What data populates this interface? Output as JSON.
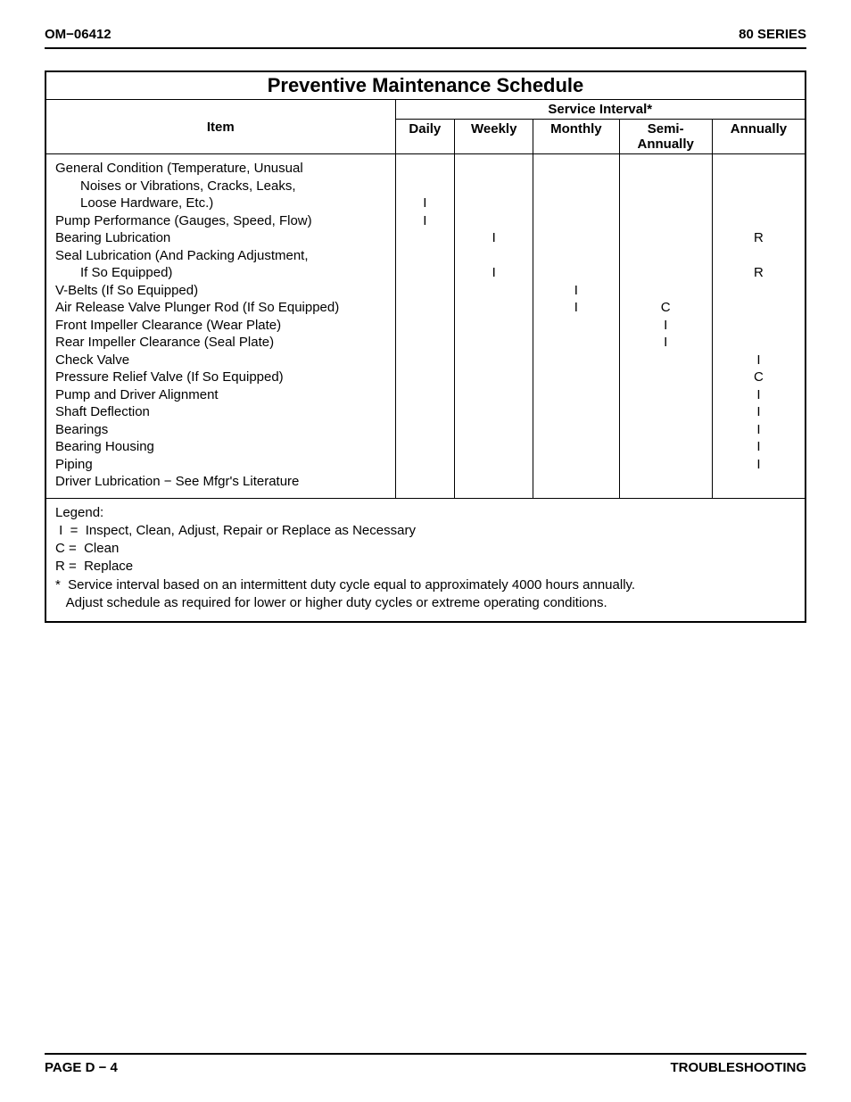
{
  "header": {
    "left": "OM−06412",
    "right": "80 SERIES"
  },
  "footer": {
    "left": "PAGE D − 4",
    "right": "TROUBLESHOOTING"
  },
  "table": {
    "title": "Preventive Maintenance Schedule",
    "item_header": "Item",
    "service_interval_header": "Service Interval*",
    "columns": [
      "Daily",
      "Weekly",
      "Monthly",
      "Semi-\nAnnually",
      "Annually"
    ],
    "rows": [
      {
        "item_lines": [
          "General Condition (Temperature, Unusual",
          "  Noises or Vibrations, Cracks, Leaks,",
          "  Loose Hardware, Etc.)"
        ],
        "vals": [
          "I",
          "",
          "",
          "",
          ""
        ]
      },
      {
        "item_lines": [
          "Pump Performance (Gauges, Speed, Flow)"
        ],
        "vals": [
          "I",
          "",
          "",
          "",
          ""
        ]
      },
      {
        "item_lines": [
          "Bearing Lubrication"
        ],
        "vals": [
          "",
          "I",
          "",
          "",
          "R"
        ]
      },
      {
        "item_lines": [
          "Seal Lubrication (And Packing Adjustment,",
          "  If So Equipped)"
        ],
        "vals": [
          "",
          "I",
          "",
          "",
          "R"
        ]
      },
      {
        "item_lines": [
          "V-Belts (If So Equipped)"
        ],
        "vals": [
          "",
          "",
          "I",
          "",
          ""
        ]
      },
      {
        "item_lines": [
          "Air Release Valve Plunger Rod (If So Equipped)"
        ],
        "vals": [
          "",
          "",
          "I",
          "C",
          ""
        ]
      },
      {
        "item_lines": [
          "Front Impeller Clearance (Wear Plate)"
        ],
        "vals": [
          "",
          "",
          "",
          "I",
          ""
        ]
      },
      {
        "item_lines": [
          "Rear Impeller Clearance (Seal Plate)"
        ],
        "vals": [
          "",
          "",
          "",
          "I",
          ""
        ]
      },
      {
        "item_lines": [
          "Check Valve"
        ],
        "vals": [
          "",
          "",
          "",
          "",
          "I"
        ]
      },
      {
        "item_lines": [
          "Pressure Relief Valve (If So Equipped)"
        ],
        "vals": [
          "",
          "",
          "",
          "",
          "C"
        ]
      },
      {
        "item_lines": [
          "Pump and Driver Alignment"
        ],
        "vals": [
          "",
          "",
          "",
          "",
          "I"
        ]
      },
      {
        "item_lines": [
          "Shaft Deflection"
        ],
        "vals": [
          "",
          "",
          "",
          "",
          "I"
        ]
      },
      {
        "item_lines": [
          "Bearings"
        ],
        "vals": [
          "",
          "",
          "",
          "",
          "I"
        ]
      },
      {
        "item_lines": [
          "Bearing Housing"
        ],
        "vals": [
          "",
          "",
          "",
          "",
          "I"
        ]
      },
      {
        "item_lines": [
          "Piping"
        ],
        "vals": [
          "",
          "",
          "",
          "",
          "I"
        ]
      },
      {
        "item_lines": [
          "Driver Lubrication − See Mfgr's Literature"
        ],
        "vals": [
          "",
          "",
          "",
          "",
          ""
        ]
      }
    ],
    "legend": {
      "title": "Legend:",
      "lines": [
        " I  =  Inspect, Clean, Adjust, Repair or Replace as Necessary",
        "C =  Clean",
        "R =  Replace"
      ],
      "note_lines": [
        "*  Service interval based on an intermittent duty cycle equal to approximately 4000 hours annually.",
        "   Adjust schedule as required for lower or higher duty cycles or extreme operating conditions."
      ]
    }
  }
}
